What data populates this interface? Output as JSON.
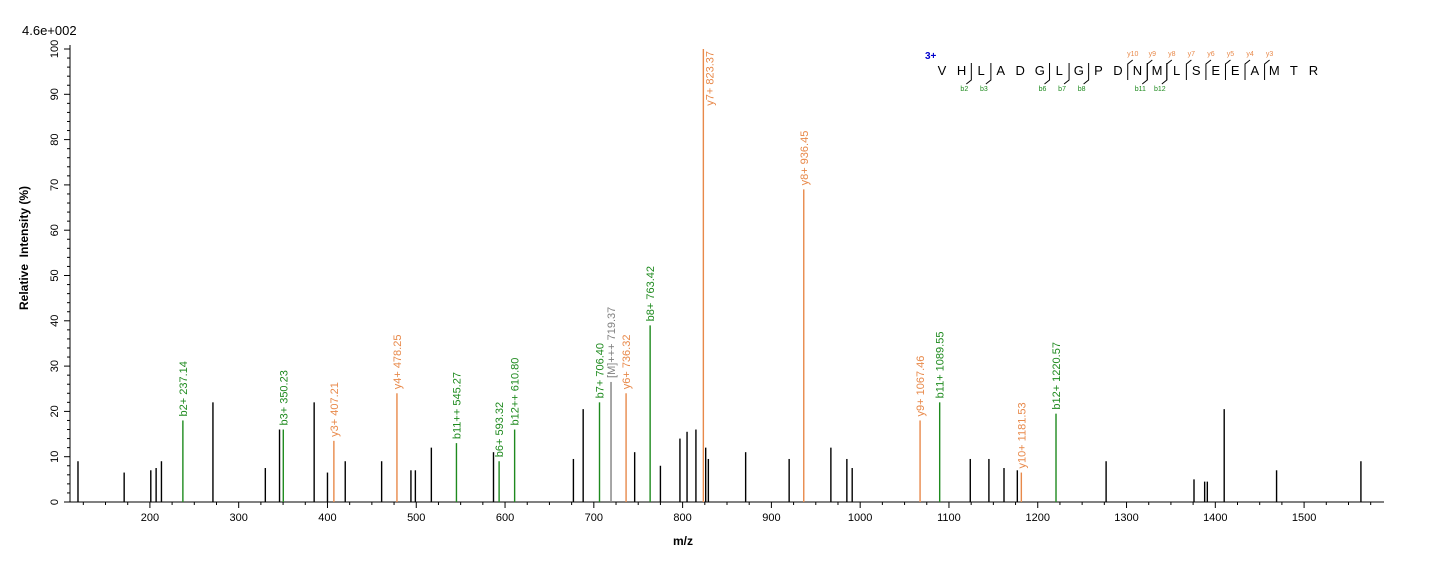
{
  "chart_data": {
    "type": "bar",
    "subtype": "mass-spectrum",
    "max_intensity_label": "4.6e+002",
    "xlabel": "m/z",
    "ylabel": "Relative  Intensity (%)",
    "xlim": [
      110,
      1590
    ],
    "ylim": [
      0,
      100
    ],
    "x_ticks": [
      200,
      300,
      400,
      500,
      600,
      700,
      800,
      900,
      1000,
      1100,
      1200,
      1300,
      1400,
      1500
    ],
    "y_ticks": [
      0,
      10,
      20,
      30,
      40,
      50,
      60,
      70,
      80,
      90,
      100
    ],
    "grid": false,
    "colors": {
      "b_ion": "#1e8a1e",
      "y_ion": "#e8894a",
      "precursor": "#808080",
      "unassigned": "#000000",
      "charge": "#0000cc"
    },
    "annotated_peaks": [
      {
        "mz": 237.14,
        "intensity": 18,
        "type": "b_ion",
        "label": "b2+ 237.14"
      },
      {
        "mz": 350.23,
        "intensity": 16,
        "type": "b_ion",
        "label": "b3+ 350.23"
      },
      {
        "mz": 407.21,
        "intensity": 13.5,
        "type": "y_ion",
        "label": "y3+ 407.21"
      },
      {
        "mz": 478.25,
        "intensity": 24,
        "type": "y_ion",
        "label": "y4+ 478.25"
      },
      {
        "mz": 545.27,
        "intensity": 13,
        "type": "b_ion",
        "label": "b11++ 545.27"
      },
      {
        "mz": 593.32,
        "intensity": 9,
        "type": "b_ion",
        "label": "b6+ 593.32"
      },
      {
        "mz": 610.8,
        "intensity": 16,
        "type": "b_ion",
        "label": "b12++ 610.80"
      },
      {
        "mz": 706.4,
        "intensity": 22,
        "type": "b_ion",
        "label": "b7+ 706.40"
      },
      {
        "mz": 719.37,
        "intensity": 26.5,
        "type": "precursor",
        "label": "[M]+++ 719.37"
      },
      {
        "mz": 736.32,
        "intensity": 24,
        "type": "y_ion",
        "label": "y6+ 736.32"
      },
      {
        "mz": 763.42,
        "intensity": 39,
        "type": "b_ion",
        "label": "b8+ 763.42"
      },
      {
        "mz": 823.37,
        "intensity": 100,
        "type": "y_ion",
        "label": "y7+ 823.37"
      },
      {
        "mz": 936.45,
        "intensity": 69,
        "type": "y_ion",
        "label": "y8+ 936.45"
      },
      {
        "mz": 1067.46,
        "intensity": 18,
        "type": "y_ion",
        "label": "y9+ 1067.46"
      },
      {
        "mz": 1089.55,
        "intensity": 22,
        "type": "b_ion",
        "label": "b11+ 1089.55"
      },
      {
        "mz": 1181.53,
        "intensity": 6.5,
        "type": "y_ion",
        "label": "y10+ 1181.53"
      },
      {
        "mz": 1220.57,
        "intensity": 19.5,
        "type": "b_ion",
        "label": "b12+ 1220.57"
      }
    ],
    "unassigned_peaks": [
      {
        "mz": 119,
        "intensity": 9
      },
      {
        "mz": 171,
        "intensity": 6.5
      },
      {
        "mz": 201,
        "intensity": 7
      },
      {
        "mz": 207,
        "intensity": 7.5
      },
      {
        "mz": 213,
        "intensity": 9
      },
      {
        "mz": 271,
        "intensity": 22
      },
      {
        "mz": 330,
        "intensity": 7.5
      },
      {
        "mz": 346,
        "intensity": 16
      },
      {
        "mz": 385,
        "intensity": 22
      },
      {
        "mz": 400,
        "intensity": 6.5
      },
      {
        "mz": 420,
        "intensity": 9
      },
      {
        "mz": 461,
        "intensity": 9
      },
      {
        "mz": 494,
        "intensity": 7
      },
      {
        "mz": 499,
        "intensity": 7
      },
      {
        "mz": 517,
        "intensity": 12
      },
      {
        "mz": 587,
        "intensity": 11
      },
      {
        "mz": 677,
        "intensity": 9.5
      },
      {
        "mz": 688,
        "intensity": 20.5
      },
      {
        "mz": 746,
        "intensity": 11
      },
      {
        "mz": 775,
        "intensity": 8
      },
      {
        "mz": 797,
        "intensity": 14
      },
      {
        "mz": 805,
        "intensity": 15.5
      },
      {
        "mz": 815,
        "intensity": 16
      },
      {
        "mz": 826,
        "intensity": 12
      },
      {
        "mz": 829,
        "intensity": 9.5
      },
      {
        "mz": 871,
        "intensity": 11
      },
      {
        "mz": 920,
        "intensity": 9.5
      },
      {
        "mz": 967,
        "intensity": 12
      },
      {
        "mz": 985,
        "intensity": 9.5
      },
      {
        "mz": 991,
        "intensity": 7.5
      },
      {
        "mz": 1124,
        "intensity": 9.5
      },
      {
        "mz": 1145,
        "intensity": 9.5
      },
      {
        "mz": 1162,
        "intensity": 7.5
      },
      {
        "mz": 1177,
        "intensity": 7
      },
      {
        "mz": 1277,
        "intensity": 9
      },
      {
        "mz": 1376,
        "intensity": 5
      },
      {
        "mz": 1388,
        "intensity": 4.5
      },
      {
        "mz": 1391,
        "intensity": 4.5
      },
      {
        "mz": 1410,
        "intensity": 20.5
      },
      {
        "mz": 1469,
        "intensity": 7
      },
      {
        "mz": 1564,
        "intensity": 9
      }
    ],
    "sequence": {
      "charge": "3+",
      "residues": [
        "V",
        "H",
        "L",
        "A",
        "D",
        "G",
        "L",
        "G",
        "P",
        "D",
        "N",
        "M",
        "L",
        "S",
        "E",
        "E",
        "A",
        "M",
        "T",
        "R"
      ],
      "b_ions": [
        {
          "label": "b2",
          "after": 2
        },
        {
          "label": "b3",
          "after": 3
        },
        {
          "label": "b6",
          "after": 6
        },
        {
          "label": "b7",
          "after": 7
        },
        {
          "label": "b8",
          "after": 8
        },
        {
          "label": "b11",
          "after": 11
        },
        {
          "label": "b12",
          "after": 12
        }
      ],
      "y_ions": [
        {
          "label": "y10",
          "after": 10
        },
        {
          "label": "y9",
          "after": 11
        },
        {
          "label": "y8",
          "after": 12
        },
        {
          "label": "y7",
          "after": 13
        },
        {
          "label": "y6",
          "after": 14
        },
        {
          "label": "y5",
          "after": 15
        },
        {
          "label": "y4",
          "after": 16
        },
        {
          "label": "y3",
          "after": 17
        }
      ]
    }
  }
}
